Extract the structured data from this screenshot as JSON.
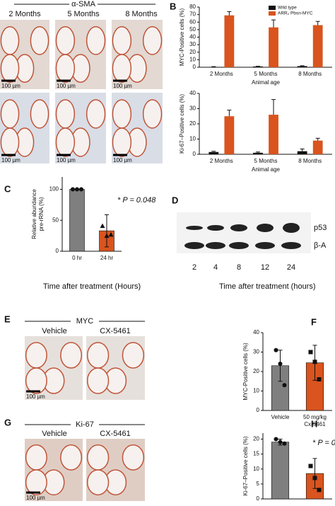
{
  "figure": {
    "panel_labels": [
      "B",
      "C",
      "D",
      "E",
      "F",
      "G",
      "H"
    ],
    "sma": {
      "title": "α-SMA",
      "columns": [
        "2 Months",
        "5 Months",
        "8 Months"
      ],
      "scale": "100 µm"
    },
    "blot": {
      "lanes": [
        "2",
        "4",
        "8",
        "12",
        "24"
      ],
      "bands": [
        "p53",
        "β-A"
      ],
      "x_label": "Time after treatment (hours)"
    },
    "e": {
      "title": "MYC",
      "columns": [
        "Vehicle",
        "CX-5461"
      ],
      "scale": "100 µm"
    },
    "g": {
      "title": "Ki-67",
      "columns": [
        "Vehicle",
        "CX-5461"
      ],
      "scale": "100 µm"
    }
  },
  "chart_data": [
    {
      "type": "bar",
      "y_label": [
        "MYC-Positive cells (%)"
      ],
      "x_label": "Animal age",
      "categories": [
        "2 Months",
        "5 Months",
        "8 Months"
      ],
      "series": [
        {
          "name": "Wild type",
          "color": "#111111",
          "values": [
            0.5,
            1,
            1.5
          ],
          "errors": [
            0.3,
            0.3,
            0.5
          ]
        },
        {
          "name": "ARR₂ Pbsn-MYC",
          "color": "#d9541e",
          "values": [
            69,
            53,
            56
          ],
          "errors": [
            5,
            10,
            5
          ]
        }
      ],
      "ylim": [
        0,
        80
      ],
      "yticks": [
        0,
        10,
        20,
        30,
        40,
        50,
        60,
        70,
        80
      ],
      "legend": "upper right"
    },
    {
      "type": "bar",
      "y_label": [
        "Ki-67–Positive cells (%)"
      ],
      "x_label": "Animal age",
      "categories": [
        "2 Months",
        "5 Months",
        "8 Months"
      ],
      "series": [
        {
          "color": "#111111",
          "values": [
            1.5,
            1,
            2
          ],
          "errors": [
            0.5,
            0.5,
            1.5
          ]
        },
        {
          "color": "#d9541e",
          "values": [
            25,
            26,
            9
          ],
          "errors": [
            4,
            10,
            1.5
          ]
        }
      ],
      "ylim": [
        0,
        40
      ],
      "yticks": [
        0,
        10,
        20,
        30,
        40
      ]
    },
    {
      "type": "bar",
      "y_label": [
        "Relative abundance",
        "pre-rRNA (%)"
      ],
      "x_label": "Time after treatment (Hours)",
      "categories": [
        "0 hr",
        "24 hr"
      ],
      "values": [
        100,
        33
      ],
      "errors": [
        0,
        26
      ],
      "colors": [
        "#7f7f7f",
        "#d9541e"
      ],
      "points": [
        [
          100,
          100,
          100
        ],
        [
          41,
          25,
          27
        ]
      ],
      "markers": [
        "circle",
        "triangle"
      ],
      "annotation": "* P = 0.048",
      "ylim": [
        0,
        120
      ],
      "yticks": [
        0,
        50,
        100
      ]
    },
    {
      "type": "bar",
      "y_label": [
        "MYC-Positive cells (%)"
      ],
      "categories": [
        [
          "Vehicle"
        ],
        [
          "50 mg/kg",
          "Cx-5461"
        ]
      ],
      "values": [
        23,
        24.5
      ],
      "errors": [
        8,
        9
      ],
      "colors": [
        "#7f7f7f",
        "#d9541e"
      ],
      "points": [
        [
          31,
          24,
          13
        ],
        [
          30,
          25,
          16
        ]
      ],
      "markers": [
        "circle",
        "square"
      ],
      "ylim": [
        0,
        40
      ],
      "yticks": [
        0,
        10,
        20,
        30,
        40
      ]
    },
    {
      "type": "bar",
      "y_label": [
        "Ki-67–Positive cells (%)"
      ],
      "categories": [
        null,
        null
      ],
      "values": [
        19,
        8.5
      ],
      "errors": [
        1,
        5
      ],
      "colors": [
        "#7f7f7f",
        "#d9541e"
      ],
      "points": [
        [
          20,
          19,
          18.5
        ],
        [
          11,
          7,
          3
        ]
      ],
      "markers": [
        "circle",
        "square"
      ],
      "annotation": "* P = 0",
      "ylim": [
        0,
        22
      ],
      "yticks": [
        0,
        5,
        10,
        15,
        20
      ]
    }
  ]
}
